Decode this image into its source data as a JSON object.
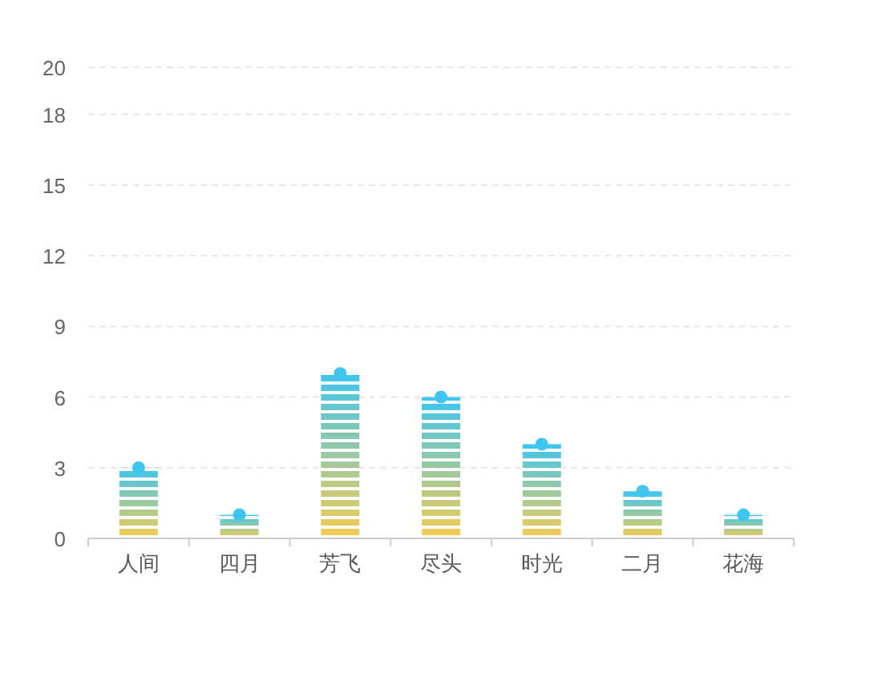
{
  "chart_data": {
    "type": "bar",
    "categories": [
      "人间",
      "四月",
      "芳飞",
      "尽头",
      "时光",
      "二月",
      "花海"
    ],
    "series": [
      {
        "color": "#3ec6f0",
        "values": [
          3,
          1,
          7,
          6,
          4,
          2,
          1
        ]
      }
    ],
    "ylim": [
      0,
      20
    ],
    "yticks": [
      0,
      3,
      6,
      9,
      12,
      15,
      18,
      20
    ],
    "grid": "y",
    "marker": "circle"
  }
}
